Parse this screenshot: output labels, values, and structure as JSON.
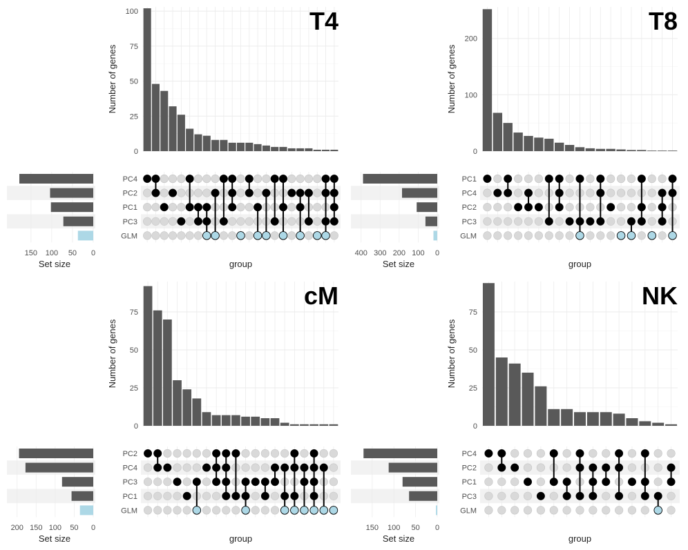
{
  "chart_data": [
    {
      "type": "bar",
      "title": "T4",
      "ylabel": "Number of genes",
      "xlabel": "group",
      "set_size_label": "Set size",
      "ylim": [
        0,
        103
      ],
      "yticks": [
        0,
        25,
        50,
        75,
        100
      ],
      "sets": [
        "PC4",
        "PC2",
        "PC1",
        "PC3",
        "GLM"
      ],
      "set_sizes": [
        178,
        104,
        102,
        72,
        37
      ],
      "set_colors": [
        "#595959",
        "#595959",
        "#595959",
        "#595959",
        "#add8e6"
      ],
      "set_size_ticks": [
        150,
        100,
        50,
        0
      ],
      "set_size_max": 188,
      "intersection_values": [
        102,
        48,
        43,
        32,
        26,
        16,
        12,
        11,
        8,
        8,
        6,
        6,
        6,
        5,
        4,
        3,
        3,
        2,
        2,
        2,
        1,
        1,
        1
      ],
      "intersections": [
        [
          "PC4"
        ],
        [
          "PC4",
          "PC2"
        ],
        [
          "PC1"
        ],
        [
          "PC2"
        ],
        [
          "PC3"
        ],
        [
          "PC4",
          "PC1"
        ],
        [
          "PC1",
          "PC3"
        ],
        [
          "PC1",
          "PC3",
          "GLM"
        ],
        [
          "PC2",
          "GLM"
        ],
        [
          "PC4",
          "PC3"
        ],
        [
          "PC4",
          "PC2",
          "PC1"
        ],
        [
          "GLM"
        ],
        [
          "PC4",
          "PC2"
        ],
        [
          "PC1",
          "GLM"
        ],
        [
          "PC2",
          "GLM"
        ],
        [
          "PC4",
          "PC3"
        ],
        [
          "PC4",
          "PC1",
          "GLM"
        ],
        [
          "PC2"
        ],
        [
          "PC2",
          "PC1",
          "GLM"
        ],
        [
          "PC2",
          "PC3"
        ],
        [
          "GLM"
        ],
        [
          "PC4",
          "PC2",
          "PC3",
          "GLM"
        ],
        [
          "PC4",
          "PC2",
          "PC1",
          "PC3"
        ]
      ]
    },
    {
      "type": "bar",
      "title": "T8",
      "ylabel": "Number of genes",
      "xlabel": "group",
      "set_size_label": "Set size",
      "ylim": [
        0,
        256
      ],
      "yticks": [
        0,
        100,
        200
      ],
      "sets": [
        "PC1",
        "PC4",
        "PC2",
        "PC3",
        "GLM"
      ],
      "set_sizes": [
        390,
        185,
        108,
        62,
        20
      ],
      "set_colors": [
        "#595959",
        "#595959",
        "#595959",
        "#595959",
        "#add8e6"
      ],
      "set_size_ticks": [
        400,
        300,
        200,
        100,
        0
      ],
      "set_size_max": 410,
      "intersection_values": [
        252,
        68,
        50,
        33,
        27,
        24,
        22,
        15,
        11,
        7,
        5,
        4,
        4,
        3,
        2,
        2,
        1,
        1,
        1
      ],
      "intersections": [
        [
          "PC1"
        ],
        [
          "PC4"
        ],
        [
          "PC1",
          "PC4"
        ],
        [
          "PC2"
        ],
        [
          "PC4",
          "PC2"
        ],
        [
          "PC2"
        ],
        [
          "PC1",
          "PC3"
        ],
        [
          "PC1",
          "PC4",
          "PC2"
        ],
        [
          "PC3"
        ],
        [
          "PC1",
          "PC3",
          "GLM"
        ],
        [
          "PC3"
        ],
        [
          "PC1",
          "PC4",
          "PC3"
        ],
        [
          "PC2"
        ],
        [
          "GLM"
        ],
        [
          "PC3",
          "GLM"
        ],
        [
          "PC1",
          "PC2",
          "PC3"
        ],
        [
          "GLM"
        ],
        [
          "PC4",
          "PC2",
          "PC3"
        ],
        [
          "PC1",
          "PC4",
          "GLM"
        ]
      ]
    },
    {
      "type": "bar",
      "title": "cM",
      "ylabel": "Number of genes",
      "xlabel": "group",
      "set_size_label": "Set size",
      "ylim": [
        0,
        95
      ],
      "yticks": [
        0,
        25,
        50,
        75
      ],
      "sets": [
        "PC2",
        "PC4",
        "PC3",
        "PC1",
        "GLM"
      ],
      "set_sizes": [
        195,
        178,
        82,
        57,
        35
      ],
      "set_colors": [
        "#595959",
        "#595959",
        "#595959",
        "#595959",
        "#add8e6"
      ],
      "set_size_ticks": [
        200,
        150,
        100,
        50,
        0
      ],
      "set_size_max": 205,
      "intersection_values": [
        92,
        76,
        70,
        30,
        24,
        18,
        9,
        7,
        7,
        7,
        6,
        6,
        5,
        5,
        2,
        1,
        1,
        1,
        1,
        1
      ],
      "intersections": [
        [
          "PC2"
        ],
        [
          "PC2",
          "PC4"
        ],
        [
          "PC4"
        ],
        [
          "PC3"
        ],
        [
          "PC1"
        ],
        [
          "PC3",
          "GLM"
        ],
        [
          "PC4"
        ],
        [
          "PC2",
          "PC4",
          "PC3"
        ],
        [
          "PC2",
          "PC4",
          "PC3",
          "PC1"
        ],
        [
          "PC2",
          "PC1"
        ],
        [
          "PC3",
          "PC1",
          "GLM"
        ],
        [
          "PC3"
        ],
        [
          "PC3",
          "PC1"
        ],
        [
          "PC4",
          "PC3"
        ],
        [
          "PC4",
          "PC1",
          "GLM"
        ],
        [
          "PC2",
          "PC4",
          "PC1",
          "GLM"
        ],
        [
          "PC4",
          "PC3",
          "GLM"
        ],
        [
          "PC2",
          "PC4",
          "PC3",
          "PC1",
          "GLM"
        ],
        [
          "PC4",
          "GLM"
        ],
        [
          "GLM"
        ]
      ]
    },
    {
      "type": "bar",
      "title": "NK",
      "ylabel": "Number of genes",
      "xlabel": "group",
      "set_size_label": "Set size",
      "ylim": [
        0,
        95
      ],
      "yticks": [
        0,
        25,
        50,
        75
      ],
      "sets": [
        "PC4",
        "PC2",
        "PC1",
        "PC3",
        "GLM"
      ],
      "set_sizes": [
        170,
        112,
        80,
        65,
        3
      ],
      "set_colors": [
        "#595959",
        "#595959",
        "#595959",
        "#595959",
        "#add8e6"
      ],
      "set_size_ticks": [
        150,
        100,
        50,
        0
      ],
      "set_size_max": 180,
      "intersection_values": [
        94,
        45,
        41,
        35,
        26,
        11,
        11,
        9,
        9,
        9,
        8,
        5,
        3,
        2,
        1
      ],
      "intersections": [
        [
          "PC4"
        ],
        [
          "PC4",
          "PC2"
        ],
        [
          "PC2"
        ],
        [
          "PC1"
        ],
        [
          "PC3"
        ],
        [
          "PC4",
          "PC1"
        ],
        [
          "PC1",
          "PC3"
        ],
        [
          "PC4",
          "PC2",
          "PC3"
        ],
        [
          "PC2",
          "PC1",
          "PC3"
        ],
        [
          "PC2",
          "PC1"
        ],
        [
          "PC4",
          "PC2",
          "PC3"
        ],
        [
          "PC1"
        ],
        [
          "PC4",
          "PC1",
          "PC3"
        ],
        [
          "PC3",
          "GLM"
        ],
        [
          "PC2",
          "PC1"
        ]
      ]
    }
  ]
}
